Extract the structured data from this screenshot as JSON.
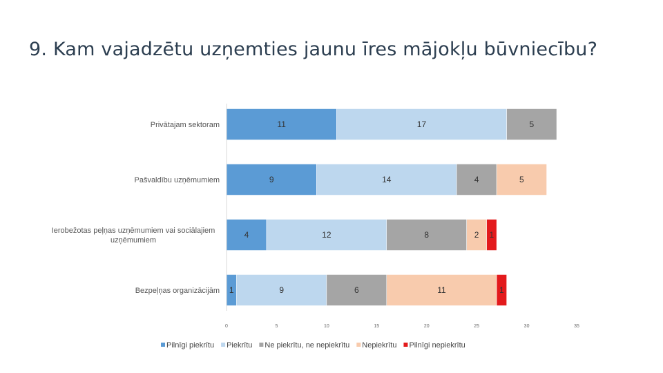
{
  "title": "9. Kam vajadzētu uzņemties jaunu īres mājokļu būvniecību?",
  "chart_data": {
    "type": "bar",
    "orientation": "horizontal",
    "stacked": true,
    "title": "9. Kam vajadzētu uzņemties jaunu īres mājokļu būvniecību?",
    "categories": [
      [
        "Privātajam sektoram"
      ],
      [
        "Pašvaldību uzņēmumiem"
      ],
      [
        "Ierobežotas peļņas uzņēmumiem vai sociālajiem",
        "uzņēmumiem"
      ],
      [
        "Bezpeļņas organizācijām"
      ]
    ],
    "series": [
      {
        "name": "Pilnīgi piekrītu",
        "color": "#5b9bd5",
        "values": [
          11,
          9,
          4,
          1
        ]
      },
      {
        "name": "Piekrītu",
        "color": "#bdd7ee",
        "values": [
          17,
          14,
          12,
          9
        ]
      },
      {
        "name": "Ne piekrītu, ne nepiekrītu",
        "color": "#a5a5a5",
        "values": [
          5,
          4,
          8,
          6
        ]
      },
      {
        "name": "Nepiekrītu",
        "color": "#f8cbad",
        "values": [
          0,
          5,
          2,
          11
        ]
      },
      {
        "name": "Pilnīgi nepiekrītu",
        "color": "#e31a1c",
        "values": [
          0,
          0,
          1,
          1
        ]
      }
    ],
    "xlim": [
      0,
      35
    ],
    "xticks": [
      0,
      5,
      10,
      15,
      20,
      25,
      30,
      35
    ],
    "xlabel": "",
    "ylabel": "",
    "grid": false,
    "legend_position": "bottom"
  }
}
